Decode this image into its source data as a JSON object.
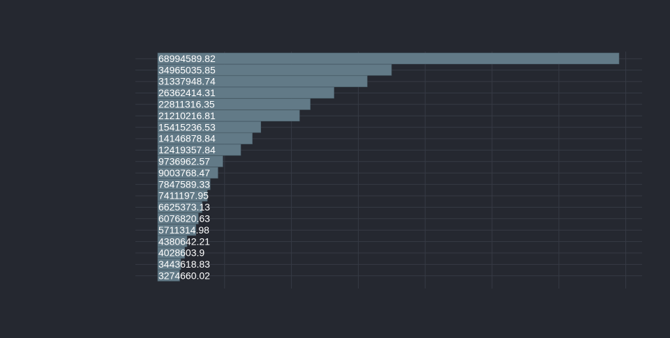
{
  "colors": {
    "background": "#252830",
    "bar": "#627a87",
    "bar_stroke": "#4f6470",
    "grid": "#363a44",
    "label": "#ffffff"
  },
  "chart_data": {
    "type": "bar",
    "orientation": "horizontal",
    "grid": true,
    "title": "",
    "xlabel": "",
    "ylabel": "",
    "xlim": [
      0,
      70000000
    ],
    "values": [
      68994589.82,
      34965035.85,
      31337948.74,
      26362414.31,
      22811316.35,
      21210216.81,
      15415236.53,
      14146878.84,
      12419357.84,
      9736962.57,
      9003768.47,
      7847589.33,
      7411197.95,
      6625373.13,
      6076820.63,
      5711314.98,
      4380642.21,
      4028603.9,
      3443618.83,
      3274660.02
    ],
    "data_labels": [
      "68994589.82",
      "34965035.85",
      "31337948.74",
      "26362414.31",
      "22811316.35",
      "21210216.81",
      "15415236.53",
      "14146878.84",
      "12419357.84",
      "9736962.57",
      "9003768.47",
      "7847589.33",
      "7411197.95",
      "6625373.13",
      "6076820.63",
      "5711314.98",
      "4380642.21",
      "4028603.9",
      "3443618.83",
      "3274660.02"
    ]
  }
}
